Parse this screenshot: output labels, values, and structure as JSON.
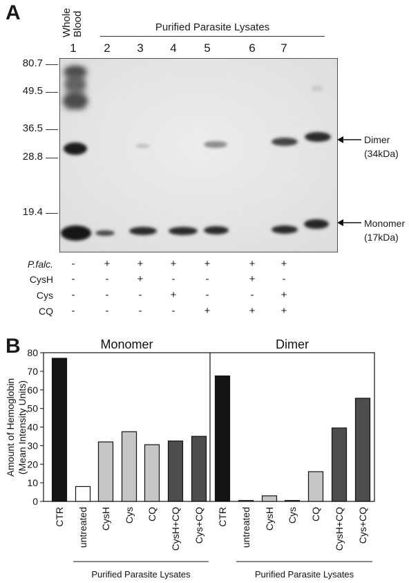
{
  "panel_a": {
    "letter": "A",
    "header_whole_blood": "Whole\nBlood",
    "header_group": "Purified Parasite Lysates",
    "lanes": [
      "1",
      "2",
      "3",
      "4",
      "5",
      "6",
      "7"
    ],
    "mw_markers": [
      "80.7",
      "49.5",
      "36.5",
      "28.8",
      "19.4"
    ],
    "dimer_label": [
      "Dimer",
      "(34kDa)"
    ],
    "monomer_label": [
      "Monomer",
      "(17kDa)"
    ],
    "conditions": [
      {
        "name": "P.falc.",
        "values": [
          "-",
          "+",
          "+",
          "+",
          "+",
          "+",
          "+"
        ]
      },
      {
        "name": "CysH",
        "values": [
          "-",
          "-",
          "+",
          "-",
          "-",
          "+",
          "-"
        ]
      },
      {
        "name": "Cys",
        "values": [
          "-",
          "-",
          "-",
          "+",
          "-",
          "-",
          "+"
        ]
      },
      {
        "name": "CQ",
        "values": [
          "-",
          "-",
          "-",
          "-",
          "+",
          "+",
          "+"
        ]
      }
    ]
  },
  "panel_b": {
    "letter": "B"
  },
  "chart_data": {
    "type": "bar",
    "title": "",
    "ylabel": "Amount of Hemoglobin\n(Mean Intensity Units)",
    "ylim": [
      0,
      80
    ],
    "yticks": [
      "0",
      "10",
      "20",
      "30",
      "40",
      "50",
      "60",
      "70",
      "80"
    ],
    "sections": [
      {
        "name": "Monomer",
        "group_label": "Purified Parasite Lysates",
        "categories": [
          "CTR",
          "untreated",
          "CysH",
          "Cys",
          "CQ",
          "CysH+CQ",
          "Cys+CQ"
        ],
        "values": [
          77,
          8,
          32,
          37.5,
          30.5,
          32.5,
          35
        ],
        "fills": [
          "#141414",
          "#ffffff",
          "#c6c6c6",
          "#c6c6c6",
          "#c6c6c6",
          "#4d4d4d",
          "#4d4d4d"
        ]
      },
      {
        "name": "Dimer",
        "group_label": "Purified Parasite Lysates",
        "categories": [
          "CTR",
          "untreated",
          "CysH",
          "Cys",
          "CQ",
          "CysH+CQ",
          "Cys+CQ"
        ],
        "values": [
          67.5,
          0.5,
          3,
          0.5,
          16,
          39.5,
          55.5
        ],
        "fills": [
          "#141414",
          "#ffffff",
          "#c6c6c6",
          "#c6c6c6",
          "#c6c6c6",
          "#4d4d4d",
          "#4d4d4d"
        ]
      }
    ]
  }
}
